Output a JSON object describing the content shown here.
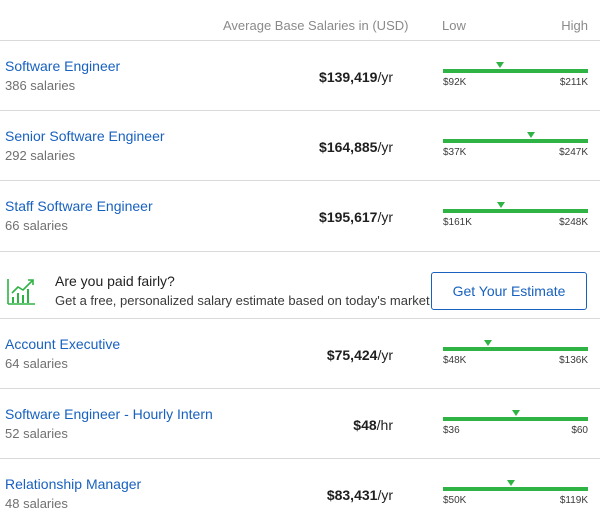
{
  "header": {
    "avg_label": "Average Base Salaries in (USD)",
    "low_label": "Low",
    "high_label": "High"
  },
  "rows_top": [
    {
      "title": "Software Engineer",
      "count": "386 salaries",
      "salary": "$139,419",
      "unit": "/yr",
      "low": "$92K",
      "high": "$211K",
      "marker_fraction": 0.39
    },
    {
      "title": "Senior Software Engineer",
      "count": "292 salaries",
      "salary": "$164,885",
      "unit": "/yr",
      "low": "$37K",
      "high": "$247K",
      "marker_fraction": 0.61
    },
    {
      "title": "Staff Software Engineer",
      "count": "66 salaries",
      "salary": "$195,617",
      "unit": "/yr",
      "low": "$161K",
      "high": "$248K",
      "marker_fraction": 0.4
    }
  ],
  "promo": {
    "icon": "growth-chart-icon",
    "question": "Are you paid fairly?",
    "subtitle": "Get a free, personalized salary estimate based on today's market",
    "cta_label": "Get Your Estimate"
  },
  "rows_bottom": [
    {
      "title": "Account Executive",
      "count": "64 salaries",
      "salary": "$75,424",
      "unit": "/yr",
      "low": "$48K",
      "high": "$136K",
      "marker_fraction": 0.31
    },
    {
      "title": "Software Engineer - Hourly Intern",
      "count": "52 salaries",
      "salary": "$48",
      "unit": "/hr",
      "low": "$36",
      "high": "$60",
      "marker_fraction": 0.5
    },
    {
      "title": "Relationship Manager",
      "count": "48 salaries",
      "salary": "$83,431",
      "unit": "/yr",
      "low": "$50K",
      "high": "$119K",
      "marker_fraction": 0.47
    }
  ],
  "colors": {
    "link": "#1861bf",
    "bar": "#2fb344",
    "divider": "#d9d9d9"
  }
}
